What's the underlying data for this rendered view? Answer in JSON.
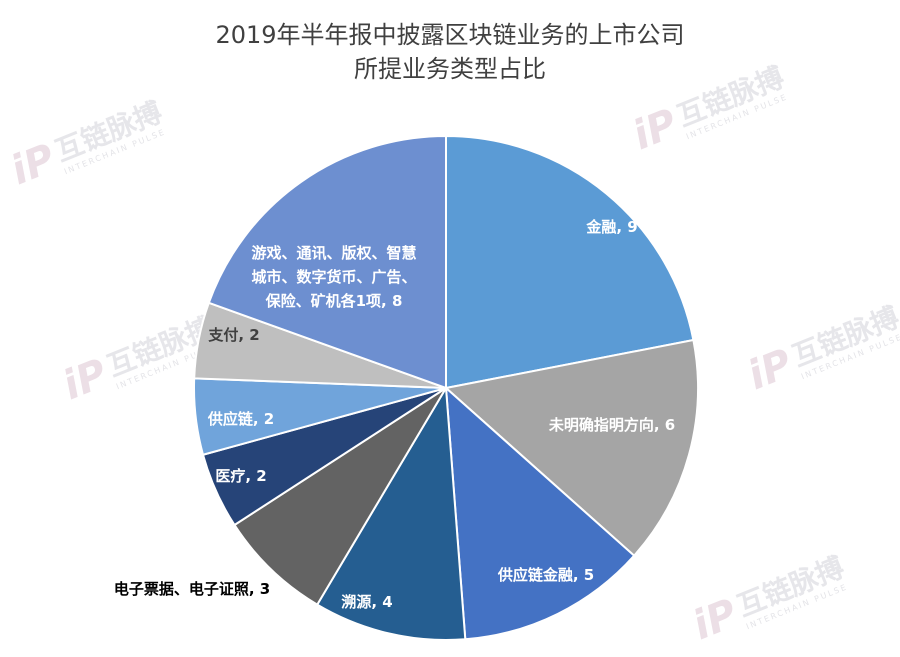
{
  "watermark": {
    "brand": "互链脉搏",
    "sub": "INTERCHAIN PULSE",
    "logo": "iP"
  },
  "colors": {
    "finance": "#5b9bd5",
    "unspecified": "#a5a5a5",
    "scf": "#4472c4",
    "trace": "#255e91",
    "einvoice": "#636363",
    "medical": "#264478",
    "supplychain": "#70a4db",
    "payment": "#bfbfbf",
    "others": "#6d8fd0"
  },
  "chart_data": {
    "type": "pie",
    "title": [
      "2019年半年报中披露区块链业务的上市公司",
      "所提业务类型占比"
    ],
    "slices": [
      {
        "label": "金融",
        "value": 9,
        "color_key": "finance",
        "label_lines": [
          "金融, 9"
        ]
      },
      {
        "label": "未明确指明方向",
        "value": 6,
        "color_key": "unspecified",
        "label_lines": [
          "未明确指明方向, 6"
        ]
      },
      {
        "label": "供应链金融",
        "value": 5,
        "color_key": "scf",
        "label_lines": [
          "供应链金融, 5"
        ]
      },
      {
        "label": "溯源",
        "value": 4,
        "color_key": "trace",
        "label_lines": [
          "溯源, 4"
        ]
      },
      {
        "label": "电子票据、电子证照",
        "value": 3,
        "color_key": "einvoice",
        "label_lines": [
          "电子票据、电子证照, 3"
        ]
      },
      {
        "label": "医疗",
        "value": 2,
        "color_key": "medical",
        "label_lines": [
          "医疗, 2"
        ]
      },
      {
        "label": "供应链",
        "value": 2,
        "color_key": "supplychain",
        "label_lines": [
          "供应链, 2"
        ]
      },
      {
        "label": "支付",
        "value": 2,
        "color_key": "payment",
        "label_lines": [
          "支付, 2"
        ]
      },
      {
        "label": "游戏、通讯、版权、智慧城市、数字货币、广告、保险、矿机各1项",
        "value": 8,
        "color_key": "others",
        "label_lines": [
          "游戏、通讯、版权、智慧",
          "城市、数字货币、广告、",
          "保险、矿机各1项, 8"
        ]
      }
    ]
  }
}
